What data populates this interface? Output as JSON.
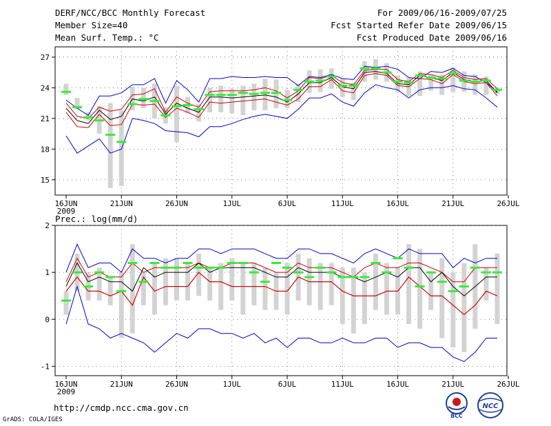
{
  "header": {
    "title": "DERF/NCC/BCC Monthly Forecast",
    "member_size": "Member Size=40",
    "variable": "Mean Surf. Temp.: °C",
    "period": "For 2009/06/16-2009/07/25",
    "start_date": "Fcst Started Refer Date 2009/06/15",
    "produced_date": "Fcst Produced Date 2009/06/16"
  },
  "footer": {
    "url": "http://cmdp.ncc.cma.gov.cn",
    "grads": "GrADS: COLA/IGES",
    "logo_left": "BCC",
    "logo_right": "NCC"
  },
  "colors": {
    "range": "#0000cc",
    "mean": "#000000",
    "sd": "#cc0000",
    "box": "#d3d3d3",
    "median": "#33ee33",
    "grid": "#555555"
  },
  "chart_data": [
    {
      "type": "line",
      "panel": "temperature",
      "title": "Mean Surf. Temp.: °C",
      "ylim": [
        13.5,
        28
      ],
      "yticks": [
        15,
        18,
        21,
        24,
        27
      ],
      "xlabels": [
        "16JUN",
        "21JUN",
        "26JUN",
        "1JUL",
        "6JUL",
        "11JUL",
        "16JUL",
        "21JUL",
        "26JUL"
      ],
      "xlabel_year": "2009",
      "n_days": 40,
      "series": [
        {
          "name": "max",
          "values": [
            22.8,
            22.0,
            21.3,
            23.2,
            23.2,
            23.5,
            24.3,
            24.3,
            24.9,
            22.5,
            24.7,
            23.8,
            22.6,
            24.9,
            24.9,
            25.1,
            25.0,
            25.0,
            25.1,
            25.0,
            25.0,
            24.2,
            25.1,
            25.0,
            25.3,
            24.9,
            24.8,
            26.1,
            26.0,
            26.1,
            25.8,
            25.0,
            24.9,
            25.6,
            25.5,
            25.9,
            25.2,
            25.1,
            24.5,
            23.6
          ]
        },
        {
          "name": "sd_upper",
          "values": [
            22.5,
            21.2,
            21.0,
            22.1,
            21.7,
            21.9,
            23.3,
            23.4,
            23.9,
            21.6,
            23.1,
            22.5,
            22.1,
            23.6,
            23.7,
            23.7,
            23.7,
            23.8,
            24.0,
            23.7,
            23.0,
            23.7,
            25.0,
            24.9,
            25.2,
            24.5,
            24.3,
            25.7,
            25.8,
            25.8,
            24.8,
            24.6,
            25.4,
            25.3,
            25.0,
            25.7,
            25.0,
            24.8,
            24.9,
            23.9
          ]
        },
        {
          "name": "mean",
          "values": [
            22.0,
            20.8,
            20.5,
            21.8,
            20.9,
            21.2,
            22.9,
            22.7,
            23.1,
            21.4,
            22.5,
            22.0,
            21.6,
            23.1,
            23.1,
            23.0,
            23.1,
            23.2,
            23.3,
            23.1,
            22.6,
            23.4,
            24.5,
            24.5,
            25.0,
            24.1,
            23.9,
            25.5,
            25.6,
            25.4,
            24.4,
            24.3,
            25.2,
            25.0,
            24.7,
            25.5,
            24.8,
            24.6,
            24.7,
            23.5
          ]
        },
        {
          "name": "sd_lower",
          "values": [
            21.6,
            20.2,
            20.1,
            21.4,
            20.3,
            20.4,
            22.4,
            22.3,
            22.4,
            21.1,
            22.0,
            21.6,
            21.1,
            22.6,
            22.5,
            22.6,
            22.7,
            22.8,
            22.9,
            22.6,
            22.3,
            22.9,
            24.1,
            24.1,
            24.8,
            23.7,
            23.5,
            25.2,
            25.4,
            25.2,
            24.2,
            24.1,
            24.9,
            24.8,
            24.4,
            25.3,
            24.6,
            24.4,
            24.5,
            23.2
          ]
        },
        {
          "name": "min",
          "values": [
            19.3,
            17.6,
            18.3,
            19.0,
            17.6,
            18.0,
            21.0,
            20.8,
            20.5,
            19.8,
            19.7,
            19.6,
            19.2,
            20.2,
            20.2,
            20.5,
            20.9,
            21.2,
            21.4,
            21.2,
            21.0,
            21.9,
            23.0,
            23.0,
            23.4,
            22.6,
            22.2,
            23.5,
            24.3,
            24.0,
            23.8,
            23.0,
            23.8,
            24.0,
            24.0,
            24.2,
            23.9,
            23.8,
            23.0,
            22.1
          ]
        }
      ],
      "boxes_low": [
        23.3,
        21.9,
        20.8,
        19.5,
        14.2,
        14.4,
        21.8,
        22.0,
        21.0,
        20.5,
        18.7,
        21.5,
        20.7,
        21.6,
        21.6,
        21.5,
        21.3,
        21.8,
        21.8,
        22.0,
        22.0,
        22.6,
        23.5,
        23.6,
        23.9,
        23.1,
        22.8,
        24.6,
        24.8,
        24.6,
        23.6,
        23.2,
        23.2,
        23.7,
        23.3,
        23.6,
        23.6,
        23.3,
        23.3,
        23.4
      ],
      "boxes_high": [
        24.4,
        23.0,
        21.6,
        22.2,
        22.5,
        21.8,
        24.1,
        24.0,
        24.4,
        22.1,
        24.2,
        23.1,
        22.4,
        24.0,
        24.2,
        23.9,
        24.2,
        24.4,
        24.9,
        24.8,
        23.8,
        24.4,
        25.7,
        25.8,
        25.9,
        24.9,
        24.5,
        26.6,
        26.8,
        26.4,
        25.2,
        25.0,
        25.6,
        25.3,
        25.3,
        26.0,
        25.6,
        25.3,
        25.1,
        24.0
      ],
      "median": [
        23.6,
        22.1,
        21.1,
        20.8,
        19.4,
        18.7,
        22.4,
        22.9,
        22.7,
        21.3,
        22.2,
        22.3,
        21.9,
        23.3,
        23.3,
        23.3,
        23.5,
        23.4,
        23.5,
        23.5,
        22.8,
        23.8,
        24.6,
        24.7,
        25.1,
        24.2,
        24.2,
        25.9,
        25.9,
        25.5,
        24.6,
        24.5,
        25.2,
        25.0,
        24.9,
        25.4,
        24.7,
        24.6,
        24.7,
        23.8
      ]
    },
    {
      "type": "line",
      "panel": "precipitation",
      "title": "Prec.: log(mm/d)",
      "ylim": [
        -1.2,
        2
      ],
      "yticks": [
        -1,
        0,
        1,
        2
      ],
      "xlabels": [
        "16JUN",
        "21JUN",
        "26JUN",
        "1JUL",
        "6JUL",
        "11JUL",
        "16JUL",
        "21JUL",
        "26JUL"
      ],
      "xlabel_year": "2009",
      "n_days": 40,
      "series": [
        {
          "name": "max",
          "values": [
            1.0,
            1.6,
            1.1,
            1.2,
            1.2,
            1.0,
            1.5,
            1.3,
            1.3,
            1.2,
            1.3,
            1.3,
            1.5,
            1.5,
            1.4,
            1.5,
            1.5,
            1.5,
            1.4,
            1.3,
            1.3,
            1.5,
            1.5,
            1.4,
            1.4,
            1.3,
            1.2,
            1.4,
            1.5,
            1.4,
            1.3,
            1.5,
            1.4,
            1.4,
            1.4,
            1.1,
            1.3,
            1.2,
            1.3,
            1.3
          ]
        },
        {
          "name": "sd_upper",
          "values": [
            0.8,
            1.3,
            0.9,
            1.0,
            0.9,
            0.9,
            1.2,
            1.0,
            1.1,
            1.1,
            1.1,
            1.1,
            1.2,
            1.1,
            1.1,
            1.2,
            1.2,
            1.2,
            1.1,
            1.0,
            1.0,
            1.2,
            1.1,
            1.1,
            1.1,
            1.0,
            0.9,
            1.1,
            1.2,
            1.1,
            1.1,
            1.2,
            1.2,
            1.1,
            1.0,
            0.8,
            0.8,
            1.1,
            1.1,
            1.1
          ]
        },
        {
          "name": "mean",
          "values": [
            0.7,
            1.2,
            0.8,
            0.9,
            0.8,
            0.8,
            0.6,
            1.1,
            0.9,
            1.0,
            1.0,
            1.0,
            1.2,
            1.0,
            1.1,
            1.1,
            1.1,
            1.1,
            1.0,
            0.9,
            0.9,
            1.1,
            1.0,
            1.0,
            1.0,
            0.9,
            0.9,
            0.8,
            0.9,
            1.0,
            0.9,
            1.1,
            1.1,
            0.8,
            1.0,
            0.7,
            0.5,
            0.7,
            0.9,
            0.9
          ]
        },
        {
          "name": "sd_lower",
          "values": [
            0.6,
            0.9,
            0.6,
            0.6,
            0.5,
            0.6,
            0.3,
            0.9,
            0.6,
            0.7,
            0.7,
            0.7,
            1.0,
            0.8,
            0.8,
            0.7,
            0.7,
            0.7,
            0.7,
            0.6,
            0.6,
            0.9,
            0.8,
            0.8,
            0.8,
            0.6,
            0.5,
            0.5,
            0.5,
            0.6,
            0.6,
            0.9,
            0.7,
            0.5,
            0.5,
            0.3,
            0.1,
            0.3,
            0.6,
            0.5
          ]
        },
        {
          "name": "min",
          "values": [
            -0.1,
            0.7,
            -0.1,
            -0.2,
            -0.4,
            -0.3,
            -0.4,
            -0.5,
            -0.7,
            -0.5,
            -0.3,
            -0.4,
            -0.2,
            -0.2,
            -0.3,
            -0.3,
            -0.4,
            -0.3,
            -0.5,
            -0.4,
            -0.6,
            -0.4,
            -0.4,
            -0.5,
            -0.5,
            -0.4,
            -0.5,
            -0.5,
            -0.4,
            -0.4,
            -0.6,
            -0.5,
            -0.5,
            -0.6,
            -0.6,
            -0.8,
            -0.9,
            -0.7,
            -0.4,
            -0.4
          ]
        },
        {
          "name": "sd_lower2",
          "values": [
            0.6,
            0.9,
            0.6,
            0.6,
            0.5,
            0.6,
            0.3,
            0.9,
            0.6,
            0.7,
            0.7,
            0.7,
            1.0,
            0.8,
            0.8,
            0.7,
            0.7,
            0.7,
            0.7,
            0.6,
            0.6,
            0.9,
            0.8,
            0.8,
            0.8,
            0.6,
            0.5,
            0.5,
            0.5,
            0.6,
            0.6,
            0.9,
            0.7,
            0.5,
            0.5,
            0.3,
            0.1,
            0.3,
            0.6,
            0.5
          ]
        }
      ],
      "boxes_low": [
        0.1,
        0.6,
        0.4,
        0.4,
        0.3,
        -0.4,
        -0.3,
        0.3,
        0.1,
        0.3,
        0.4,
        0.4,
        0.5,
        0.4,
        0.2,
        0.4,
        0.1,
        0.3,
        0.2,
        0.2,
        0.1,
        0.4,
        0.3,
        0.2,
        0.3,
        -0.1,
        -0.3,
        -0.1,
        0.2,
        0.1,
        0.1,
        -0.1,
        -0.2,
        0.2,
        -0.4,
        -0.6,
        -0.7,
        -0.2,
        0.4,
        -0.1
      ],
      "boxes_high": [
        0.6,
        1.4,
        1.0,
        1.1,
        0.9,
        1.0,
        1.6,
        1.0,
        1.2,
        1.3,
        1.3,
        1.2,
        1.4,
        1.1,
        1.2,
        1.3,
        1.2,
        1.2,
        1.1,
        1.0,
        1.2,
        1.4,
        1.3,
        1.2,
        1.2,
        1.1,
        1.1,
        1.0,
        1.4,
        1.2,
        1.1,
        1.6,
        1.5,
        1.0,
        1.3,
        1.0,
        1.2,
        1.6,
        1.1,
        1.4
      ],
      "median": [
        0.4,
        1.0,
        0.7,
        1.0,
        0.9,
        0.6,
        1.2,
        0.8,
        1.2,
        1.1,
        1.1,
        1.2,
        1.1,
        1.1,
        1.1,
        1.2,
        1.2,
        1.0,
        0.8,
        1.2,
        1.1,
        1.0,
        0.9,
        1.1,
        1.0,
        0.9,
        0.9,
        0.9,
        1.2,
        1.0,
        1.3,
        1.1,
        0.7,
        1.0,
        0.8,
        0.6,
        0.7,
        1.1,
        1.0,
        1.0
      ]
    }
  ]
}
